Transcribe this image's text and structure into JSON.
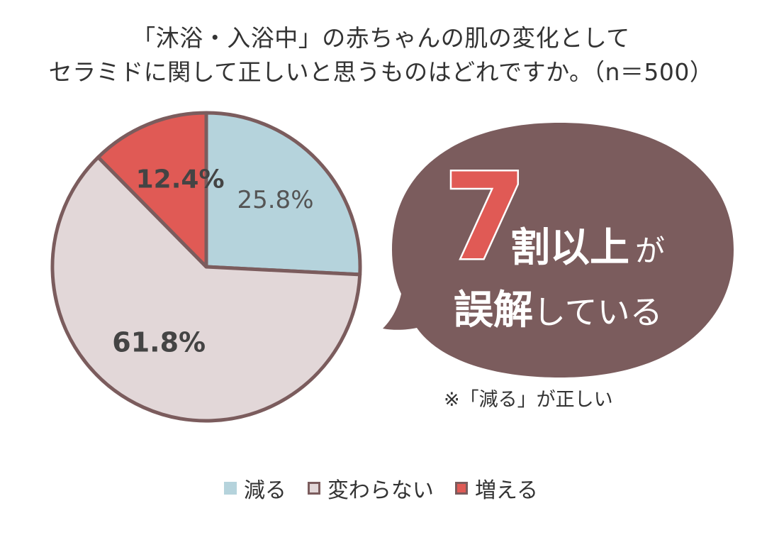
{
  "title": {
    "line1": "「沐浴・入浴中」の赤ちゃんの肌の変化として",
    "line2": "セラミドに関して正しいと思うものはどれですか。（n＝500）"
  },
  "chart_data": {
    "type": "pie",
    "slices": [
      {
        "label": "減る",
        "value": 25.8,
        "display": "25.8%",
        "color": "#b5d3dc"
      },
      {
        "label": "変わらない",
        "value": 61.8,
        "display": "61.8%",
        "color": "#e2d7d8"
      },
      {
        "label": "増える",
        "value": 12.4,
        "display": "12.4%",
        "color": "#e05a55"
      }
    ],
    "edge_color": "#7b5c5d",
    "legend_placement": "bottom"
  },
  "callout": {
    "big": "7",
    "line1_main": "割以上",
    "line1_small": "が",
    "line2_main": "誤解",
    "line2_small": "している",
    "bubble_color": "#7b5c5d"
  },
  "note": "※「減る」が正しい"
}
